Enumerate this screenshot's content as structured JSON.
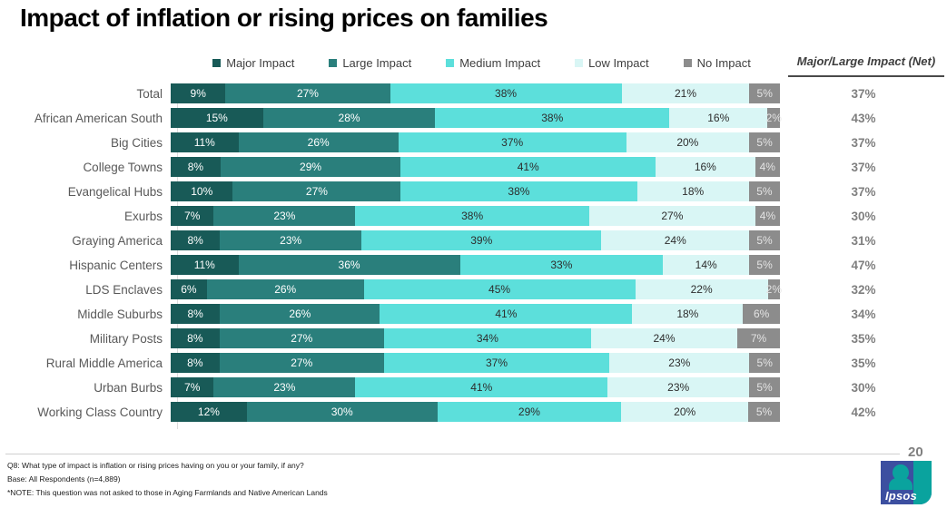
{
  "title": "Impact of inflation or rising prices on families",
  "legend": [
    {
      "label": "Major Impact",
      "color": "#185a57",
      "text_color": "#ffffff"
    },
    {
      "label": "Large Impact",
      "color": "#2a7f7c",
      "text_color": "#ffffff"
    },
    {
      "label": "Medium Impact",
      "color": "#5cdfdb",
      "text_color": "#2d2d2d"
    },
    {
      "label": "Low Impact",
      "color": "#d9f6f5",
      "text_color": "#2d2d2d"
    },
    {
      "label": "No Impact",
      "color": "#8c8c8c",
      "text_color": "#e3e3e3"
    }
  ],
  "net_header": "Major/Large Impact (Net)",
  "chart_data": {
    "type": "bar",
    "orientation": "horizontal",
    "stacked": true,
    "unit": "%",
    "title": "Impact of inflation or rising prices on families",
    "legend_position": "top",
    "categories": [
      "Total",
      "African American South",
      "Big Cities",
      "College Towns",
      "Evangelical Hubs",
      "Exurbs",
      "Graying America",
      "Hispanic Centers",
      "LDS Enclaves",
      "Middle Suburbs",
      "Military Posts",
      "Rural Middle America",
      "Urban Burbs",
      "Working Class Country"
    ],
    "series": [
      {
        "name": "Major Impact",
        "values": [
          9,
          15,
          11,
          8,
          10,
          7,
          8,
          11,
          6,
          8,
          8,
          8,
          7,
          12
        ]
      },
      {
        "name": "Large Impact",
        "values": [
          27,
          28,
          26,
          29,
          27,
          23,
          23,
          36,
          26,
          26,
          27,
          27,
          23,
          30
        ]
      },
      {
        "name": "Medium Impact",
        "values": [
          38,
          38,
          37,
          41,
          38,
          38,
          39,
          33,
          45,
          41,
          34,
          37,
          41,
          29
        ]
      },
      {
        "name": "Low Impact",
        "values": [
          21,
          16,
          20,
          16,
          18,
          27,
          24,
          14,
          22,
          18,
          24,
          23,
          23,
          20
        ]
      },
      {
        "name": "No Impact",
        "values": [
          5,
          2,
          5,
          4,
          5,
          4,
          5,
          5,
          2,
          6,
          7,
          5,
          5,
          5
        ]
      }
    ],
    "net_values": [
      "37%",
      "43%",
      "37%",
      "37%",
      "37%",
      "30%",
      "31%",
      "47%",
      "32%",
      "34%",
      "35%",
      "35%",
      "30%",
      "42%"
    ]
  },
  "footer": {
    "line1": "Q8: What type of impact is inflation or rising prices having on you or your family, if any?",
    "line2": "Base: All Respondents (n=4,889)",
    "line3": "*NOTE: This question was not asked to those in Aging Farmlands and Native American Lands",
    "page_number": "20",
    "logo_text": "Ipsos"
  }
}
